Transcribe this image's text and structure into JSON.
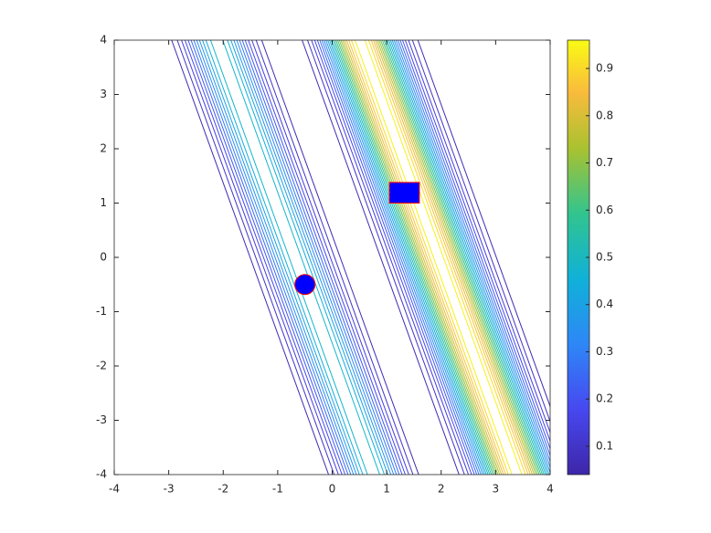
{
  "chart_data": {
    "type": "contour",
    "xlim": [
      -4,
      4
    ],
    "xticks": [
      -4,
      -3,
      -2,
      -1,
      0,
      1,
      2,
      3,
      4
    ],
    "ylim": [
      -4,
      4
    ],
    "yticks": [
      -4,
      -3,
      -2,
      -1,
      0,
      1,
      2,
      3,
      4
    ],
    "slope": 0.36,
    "bands": [
      {
        "center": -0.68,
        "peak": 0.5,
        "width": 0.4
      },
      {
        "center": 1.95,
        "peak": 0.96,
        "width": 0.45
      }
    ],
    "level_count": 24,
    "clim": [
      0.04,
      0.96
    ],
    "colorbar_ticks": [
      0.1,
      0.2,
      0.3,
      0.4,
      0.5,
      0.6,
      0.7,
      0.8,
      0.9
    ],
    "markers": [
      {
        "shape": "circle",
        "x": -0.5,
        "y": -0.5,
        "fill": "#0000ff",
        "edge": "#ff0000"
      },
      {
        "shape": "rect",
        "x": 1.05,
        "y": 1.0,
        "x2": 1.6,
        "y2": 1.38,
        "fill": "#0000ff",
        "edge": "#ff0000"
      }
    ]
  }
}
